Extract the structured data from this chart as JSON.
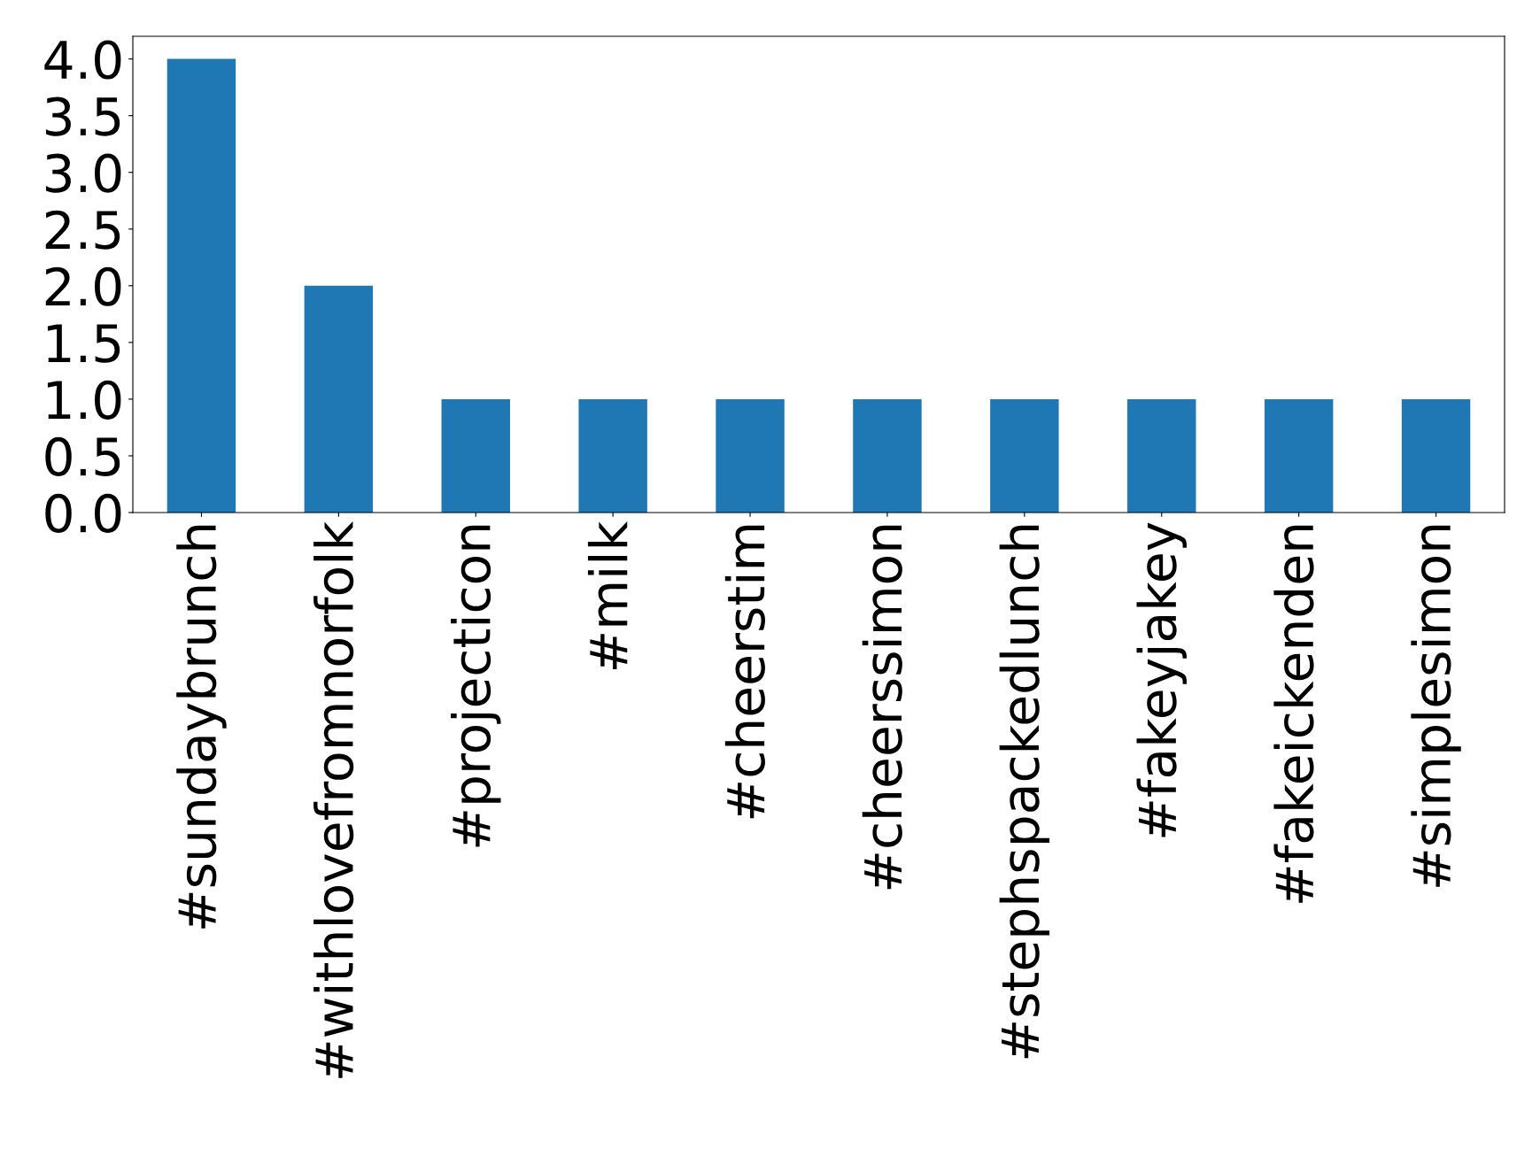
{
  "chart_data": {
    "type": "bar",
    "categories": [
      "#sundaybrunch",
      "#withlovefromnorfolk",
      "#projecticon",
      "#milk",
      "#cheerstim",
      "#cheerssimon",
      "#stephspackedlunch",
      "#fakeyjakey",
      "#fakeickenden",
      "#simplesimon"
    ],
    "values": [
      4,
      2,
      1,
      1,
      1,
      1,
      1,
      1,
      1,
      1
    ],
    "color": "#1f77b4",
    "ylim": [
      0,
      4.2
    ],
    "yticks": [
      {
        "value": 0,
        "label": "0.0"
      },
      0.5,
      {
        "value": 1,
        "label": "1.0"
      },
      1.5,
      {
        "value": 2,
        "label": "2.0"
      },
      2.5,
      {
        "value": 3,
        "label": "3.0"
      },
      3.5,
      {
        "value": 4,
        "label": "4.0"
      }
    ],
    "grid": false
  }
}
